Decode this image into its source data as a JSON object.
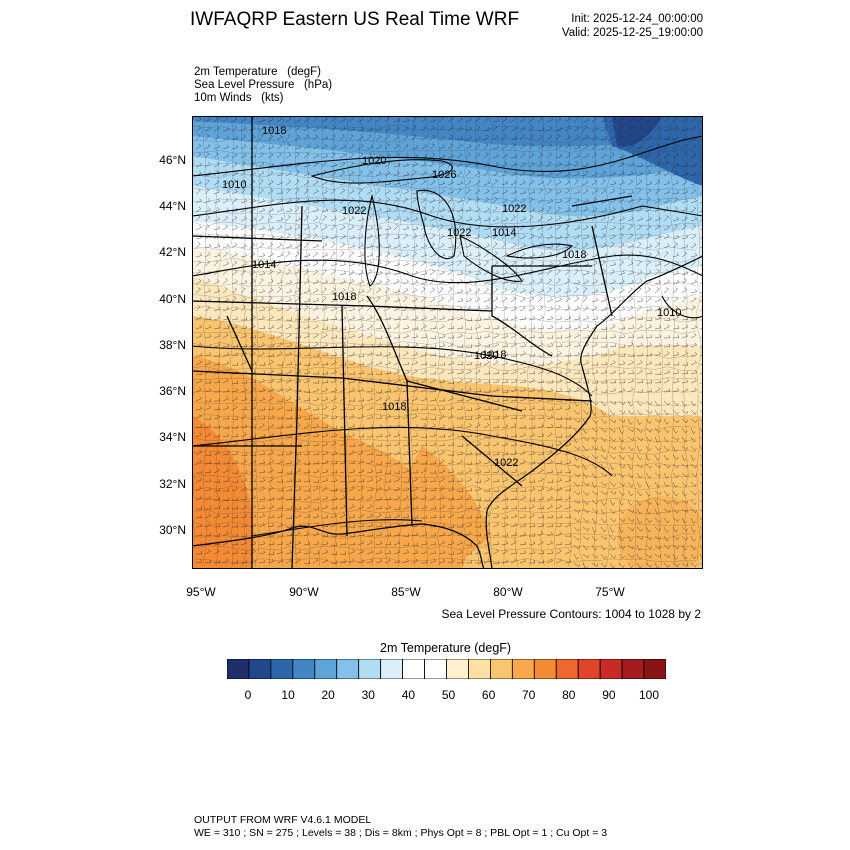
{
  "header": {
    "title": "IWFAQRP Eastern US Real Time WRF",
    "init": "Init: 2025-12-24_00:00:00",
    "valid": "Valid: 2025-12-25_19:00:00"
  },
  "fields": [
    {
      "name": "2m Temperature",
      "unit": "(degF)"
    },
    {
      "name": "Sea Level Pressure",
      "unit": "(hPa)"
    },
    {
      "name": "10m Winds",
      "unit": "(kts)"
    }
  ],
  "axes": {
    "lat_labels": [
      "46°N",
      "44°N",
      "42°N",
      "40°N",
      "38°N",
      "36°N",
      "34°N",
      "32°N",
      "30°N"
    ],
    "lon_labels": [
      "95°W",
      "90°W",
      "85°W",
      "80°W",
      "75°W"
    ]
  },
  "isobar_labels": [
    "1018",
    "1020",
    "1010",
    "1022",
    "1026",
    "1022",
    "1022",
    "1014",
    "1014",
    "1018",
    "1018",
    "1010",
    "1020",
    "1018",
    "1018",
    "1022"
  ],
  "contour_note": "Sea Level Pressure Contours: 1004 to 1028 by 2",
  "colorbar": {
    "title": "2m Temperature  (degF)",
    "colors": [
      "#1e2f6b",
      "#23478c",
      "#2e66ab",
      "#4385c5",
      "#5ea4d9",
      "#84c1ea",
      "#b0dcf4",
      "#dbeffa",
      "#ffffff",
      "#ffffff",
      "#fff1d0",
      "#fde0a3",
      "#fbc46f",
      "#f8a84a",
      "#f58a35",
      "#ee6630",
      "#e0442b",
      "#c82a27",
      "#a51b1f",
      "#8a1414"
    ],
    "labels": [
      "0",
      "10",
      "20",
      "30",
      "40",
      "50",
      "60",
      "70",
      "80",
      "90",
      "100"
    ]
  },
  "footer": {
    "line1": "OUTPUT FROM WRF V4.6.1 MODEL",
    "line2": "WE = 310 ; SN = 275 ; Levels = 38 ; Dis = 8km ; Phys Opt = 8 ; PBL Opt = 1 ; Cu Opt = 3"
  }
}
